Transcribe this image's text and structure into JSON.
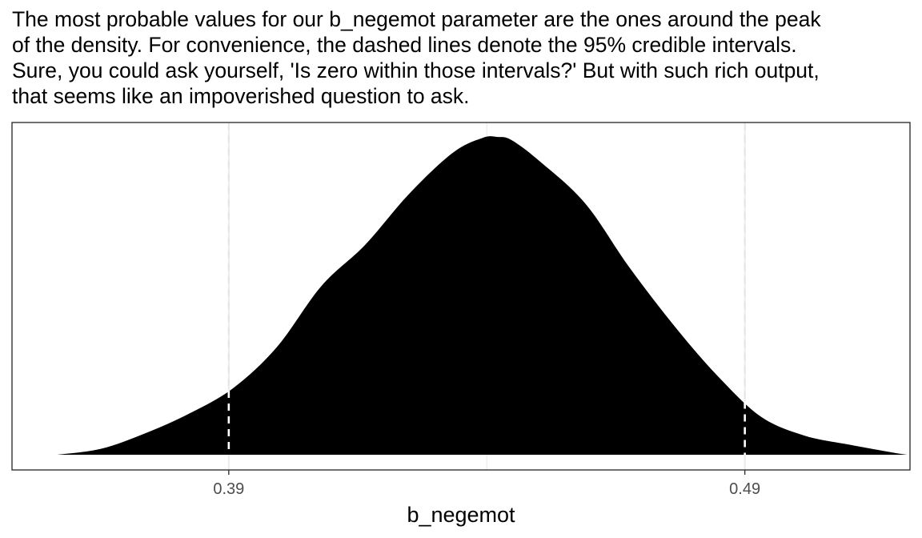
{
  "caption": "The most probable values for our b_negemot parameter are the ones around the peak\nof the density. For convenience, the dashed lines denote the 95% credible intervals.\nSure, you could ask yourself, 'Is zero within those intervals?' But with such rich output,\nthat seems like an impoverished question to ask.",
  "chart_data": {
    "type": "area",
    "title": "",
    "xlabel": "b_negemot",
    "ylabel": "",
    "xlim": [
      0.348,
      0.522
    ],
    "ylim": [
      0,
      1.05
    ],
    "x_ticks": [
      0.39,
      0.49
    ],
    "x_tick_labels": [
      "0.39",
      "0.49"
    ],
    "grid": true,
    "legend": "none",
    "fill_color": "#000000",
    "interval_line_color": "#ffffff",
    "gridline_color": "#ebebeb",
    "credible_interval_95": [
      0.39,
      0.49
    ],
    "density": {
      "x": [
        0.3568,
        0.3653,
        0.3739,
        0.3824,
        0.3909,
        0.3994,
        0.4079,
        0.4164,
        0.4249,
        0.4334,
        0.4392,
        0.442,
        0.4448,
        0.4505,
        0.4591,
        0.4676,
        0.4761,
        0.4846,
        0.4931,
        0.5016,
        0.5101,
        0.5186,
        0.5215
      ],
      "y": [
        0.0,
        0.019,
        0.068,
        0.13,
        0.21,
        0.34,
        0.53,
        0.66,
        0.82,
        0.95,
        0.997,
        1.0,
        0.99,
        0.92,
        0.79,
        0.59,
        0.41,
        0.25,
        0.12,
        0.06,
        0.032,
        0.007,
        0.0
      ]
    }
  }
}
